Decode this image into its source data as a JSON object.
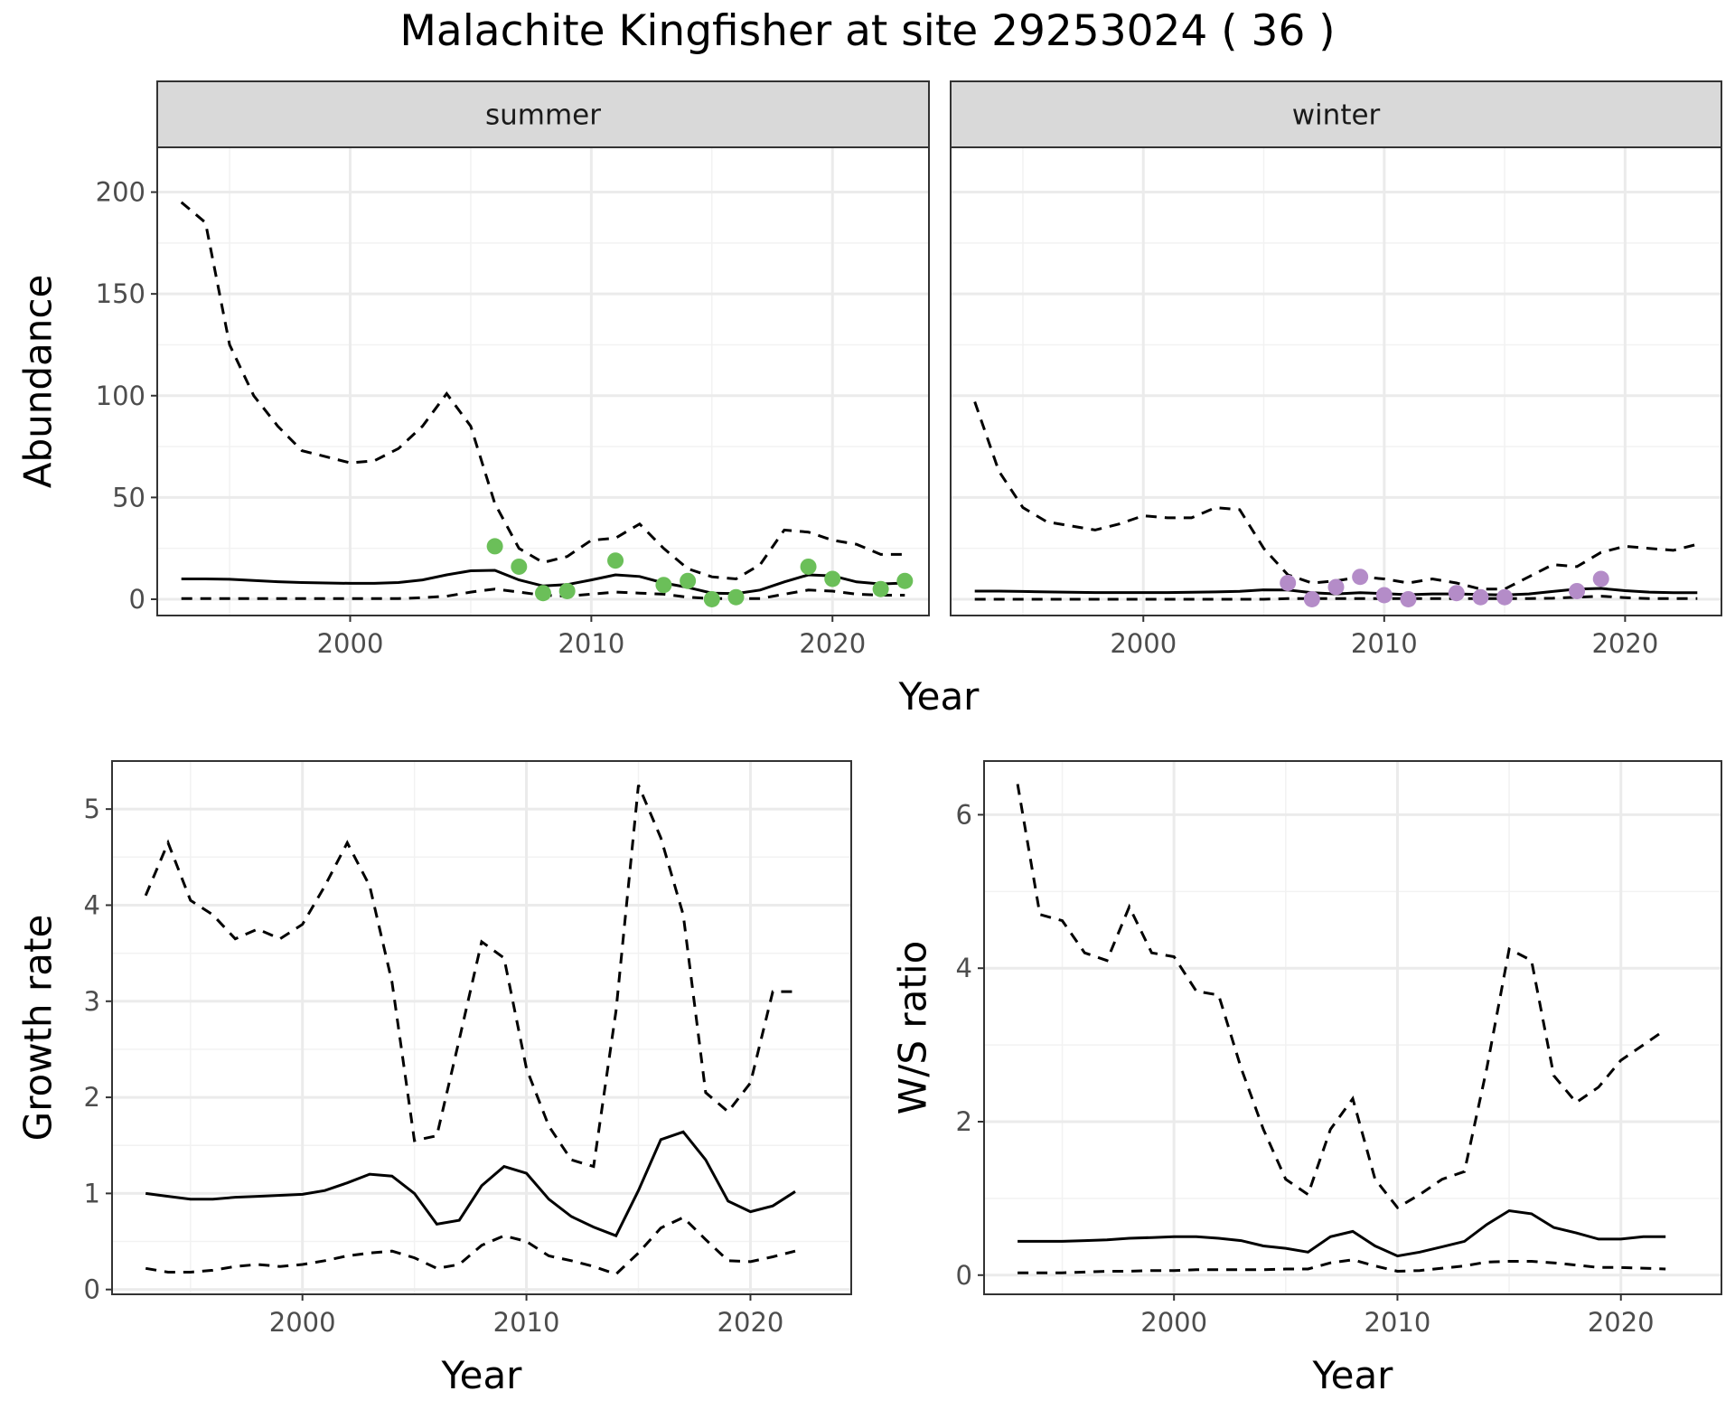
{
  "title": "Malachite Kingfisher at site 29253024 ( 36 )",
  "colors": {
    "summer_points": "#6bbf59",
    "winter_points": "#b48cc8",
    "strip_fill": "#d9d9d9",
    "lines": "#000000"
  },
  "chart_data": [
    {
      "type": "line",
      "facet": "summer",
      "xlabel": "Year",
      "ylabel": "Abundance",
      "xlim": [
        1992,
        2024
      ],
      "ylim": [
        -8,
        222
      ],
      "xticks": [
        2000,
        2010,
        2020
      ],
      "yticks": [
        0,
        50,
        100,
        150,
        200
      ],
      "grid": true,
      "series": [
        {
          "x": [
            1993,
            1994,
            1995,
            1996,
            1997,
            1998,
            1999,
            2000,
            2001,
            2002,
            2003,
            2004,
            2005,
            2006,
            2007,
            2008,
            2009,
            2010,
            2011,
            2012,
            2013,
            2014,
            2015,
            2016,
            2017,
            2018,
            2019,
            2020,
            2021,
            2022,
            2023
          ],
          "style": "solid",
          "values": [
            10,
            10,
            9.8,
            9.2,
            8.6,
            8.2,
            8,
            7.8,
            7.8,
            8.2,
            9.5,
            12,
            14,
            14.2,
            9.5,
            6.5,
            7.2,
            9.5,
            12,
            11.2,
            8,
            5.8,
            3,
            2.8,
            4.5,
            8.5,
            12,
            11.5,
            8.5,
            7.5,
            8
          ]
        },
        {
          "x": [
            1993,
            1994,
            1995,
            1996,
            1997,
            1998,
            1999,
            2000,
            2001,
            2002,
            2003,
            2004,
            2005,
            2006,
            2007,
            2008,
            2009,
            2010,
            2011,
            2012,
            2013,
            2014,
            2015,
            2016,
            2017,
            2018,
            2019,
            2020,
            2021,
            2022,
            2023
          ],
          "style": "dashed",
          "values": [
            195,
            185,
            125,
            100,
            85,
            73,
            70,
            67,
            68,
            74,
            85,
            101,
            85,
            47,
            25,
            18,
            21,
            29,
            30,
            37,
            25,
            15,
            11,
            10,
            17,
            34,
            33,
            29,
            27,
            22,
            22
          ]
        },
        {
          "x": [
            1993,
            1994,
            1995,
            1996,
            1997,
            1998,
            1999,
            2000,
            2001,
            2002,
            2003,
            2004,
            2005,
            2006,
            2007,
            2008,
            2009,
            2010,
            2011,
            2012,
            2013,
            2014,
            2015,
            2016,
            2017,
            2018,
            2019,
            2020,
            2021,
            2022,
            2023
          ],
          "style": "dashed",
          "values": [
            0.3,
            0.3,
            0.3,
            0.3,
            0.3,
            0.3,
            0.3,
            0.3,
            0.3,
            0.3,
            0.8,
            1.5,
            3.5,
            5,
            3.5,
            2,
            1.5,
            2.5,
            3.5,
            3,
            2.5,
            1,
            0.3,
            0.3,
            0.3,
            2.5,
            4.5,
            4,
            2.5,
            2,
            2
          ]
        }
      ],
      "points": {
        "x": [
          2006,
          2007,
          2008,
          2009,
          2011,
          2013,
          2014,
          2015,
          2016,
          2019,
          2020,
          2022,
          2023
        ],
        "y": [
          26,
          16,
          3,
          4,
          19,
          7,
          9,
          0,
          1,
          16,
          10,
          5,
          9
        ]
      }
    },
    {
      "type": "line",
      "facet": "winter",
      "xlabel": "Year",
      "ylabel": "Abundance",
      "xlim": [
        1992,
        2024
      ],
      "ylim": [
        -8,
        222
      ],
      "xticks": [
        2000,
        2010,
        2020
      ],
      "yticks": [
        0,
        50,
        100,
        150,
        200
      ],
      "grid": true,
      "series": [
        {
          "x": [
            1993,
            1994,
            1995,
            1996,
            1997,
            1998,
            1999,
            2000,
            2001,
            2002,
            2003,
            2004,
            2005,
            2006,
            2007,
            2008,
            2009,
            2010,
            2011,
            2012,
            2013,
            2014,
            2015,
            2016,
            2017,
            2018,
            2019,
            2020,
            2021,
            2022,
            2023
          ],
          "style": "solid",
          "values": [
            4,
            4,
            3.8,
            3.6,
            3.4,
            3.3,
            3.3,
            3.3,
            3.3,
            3.4,
            3.6,
            3.9,
            4.6,
            4.5,
            3.2,
            2.6,
            3.2,
            2.8,
            2.2,
            2.6,
            2.6,
            2.3,
            2.1,
            2.6,
            3.8,
            5,
            5.3,
            4.2,
            3.5,
            3.2,
            3.2
          ]
        },
        {
          "x": [
            1993,
            1994,
            1995,
            1996,
            1997,
            1998,
            1999,
            2000,
            2001,
            2002,
            2003,
            2004,
            2005,
            2006,
            2007,
            2008,
            2009,
            2010,
            2011,
            2012,
            2013,
            2014,
            2015,
            2016,
            2017,
            2018,
            2019,
            2020,
            2021,
            2022,
            2023
          ],
          "style": "dashed",
          "values": [
            97,
            63,
            45,
            38,
            36,
            34,
            37,
            41,
            40,
            40,
            45,
            44,
            25,
            12,
            8,
            9,
            11,
            10,
            8,
            10,
            8,
            5,
            5,
            11,
            17,
            16,
            23,
            26,
            25,
            24,
            27
          ]
        },
        {
          "x": [
            1993,
            1994,
            1995,
            1996,
            1997,
            1998,
            1999,
            2000,
            2001,
            2002,
            2003,
            2004,
            2005,
            2006,
            2007,
            2008,
            2009,
            2010,
            2011,
            2012,
            2013,
            2014,
            2015,
            2016,
            2017,
            2018,
            2019,
            2020,
            2021,
            2022,
            2023
          ],
          "style": "dashed",
          "values": [
            0,
            0,
            0,
            0,
            0,
            0,
            0,
            0,
            0,
            0,
            0,
            0,
            0,
            0.3,
            0.3,
            0.3,
            0.3,
            0.3,
            0.3,
            0.3,
            0.3,
            0.3,
            0.3,
            0.3,
            0.5,
            1,
            1.5,
            0.8,
            0.3,
            0.3,
            0.3
          ]
        }
      ],
      "points": {
        "x": [
          2006,
          2007,
          2008,
          2009,
          2010,
          2011,
          2013,
          2014,
          2015,
          2018,
          2019
        ],
        "y": [
          8,
          0,
          6,
          11,
          2,
          0,
          3,
          1,
          1,
          4,
          10
        ]
      }
    },
    {
      "type": "line",
      "xlabel": "Year",
      "ylabel": "Growth rate",
      "xlim": [
        1991.5,
        2024.5
      ],
      "ylim": [
        -0.05,
        5.5
      ],
      "xticks": [
        2000,
        2010,
        2020
      ],
      "yticks": [
        0,
        1,
        2,
        3,
        4,
        5
      ],
      "grid": true,
      "series": [
        {
          "x": [
            1993,
            1994,
            1995,
            1996,
            1997,
            1998,
            1999,
            2000,
            2001,
            2002,
            2003,
            2004,
            2005,
            2006,
            2007,
            2008,
            2009,
            2010,
            2011,
            2012,
            2013,
            2014,
            2015,
            2016,
            2017,
            2018,
            2019,
            2020,
            2021,
            2022
          ],
          "style": "solid",
          "values": [
            1,
            0.97,
            0.94,
            0.94,
            0.96,
            0.97,
            0.98,
            0.99,
            1.03,
            1.11,
            1.2,
            1.18,
            1,
            0.68,
            0.72,
            1.08,
            1.28,
            1.21,
            0.94,
            0.76,
            0.65,
            0.56,
            1.03,
            1.56,
            1.64,
            1.35,
            0.92,
            0.81,
            0.87,
            1.02
          ]
        },
        {
          "x": [
            1993,
            1994,
            1995,
            1996,
            1997,
            1998,
            1999,
            2000,
            2001,
            2002,
            2003,
            2004,
            2005,
            2006,
            2007,
            2008,
            2009,
            2010,
            2011,
            2012,
            2013,
            2014,
            2015,
            2016,
            2017,
            2018,
            2019,
            2020,
            2021,
            2022
          ],
          "style": "dashed",
          "values": [
            4.1,
            4.65,
            4.05,
            3.9,
            3.65,
            3.75,
            3.65,
            3.8,
            4.2,
            4.65,
            4.2,
            3.2,
            1.55,
            1.6,
            2.6,
            3.62,
            3.45,
            2.3,
            1.7,
            1.35,
            1.28,
            2.9,
            5.25,
            4.7,
            3.9,
            2.05,
            1.85,
            2.15,
            3.1,
            3.1
          ]
        },
        {
          "x": [
            1993,
            1994,
            1995,
            1996,
            1997,
            1998,
            1999,
            2000,
            2001,
            2002,
            2003,
            2004,
            2005,
            2006,
            2007,
            2008,
            2009,
            2010,
            2011,
            2012,
            2013,
            2014,
            2015,
            2016,
            2017,
            2018,
            2019,
            2020,
            2021,
            2022
          ],
          "style": "dashed",
          "values": [
            0.22,
            0.18,
            0.18,
            0.2,
            0.24,
            0.26,
            0.24,
            0.26,
            0.3,
            0.35,
            0.38,
            0.4,
            0.33,
            0.22,
            0.26,
            0.46,
            0.56,
            0.5,
            0.35,
            0.3,
            0.24,
            0.16,
            0.38,
            0.64,
            0.75,
            0.52,
            0.3,
            0.29,
            0.34,
            0.4
          ]
        }
      ]
    },
    {
      "type": "line",
      "xlabel": "Year",
      "ylabel": "W/S ratio",
      "xlim": [
        1991.5,
        2024.5
      ],
      "ylim": [
        -0.25,
        6.7
      ],
      "xticks": [
        2000,
        2010,
        2020
      ],
      "yticks": [
        0,
        2,
        4,
        6
      ],
      "grid": true,
      "series": [
        {
          "x": [
            1993,
            1994,
            1995,
            1996,
            1997,
            1998,
            1999,
            2000,
            2001,
            2002,
            2003,
            2004,
            2005,
            2006,
            2007,
            2008,
            2009,
            2010,
            2011,
            2012,
            2013,
            2014,
            2015,
            2016,
            2017,
            2018,
            2019,
            2020,
            2021,
            2022
          ],
          "style": "solid",
          "values": [
            0.44,
            0.44,
            0.44,
            0.45,
            0.46,
            0.48,
            0.49,
            0.5,
            0.5,
            0.48,
            0.45,
            0.38,
            0.35,
            0.3,
            0.5,
            0.57,
            0.38,
            0.25,
            0.3,
            0.37,
            0.44,
            0.66,
            0.84,
            0.8,
            0.62,
            0.55,
            0.47,
            0.47,
            0.5,
            0.5
          ]
        },
        {
          "x": [
            1993,
            1994,
            1995,
            1996,
            1997,
            1998,
            1999,
            2000,
            2001,
            2002,
            2003,
            2004,
            2005,
            2006,
            2007,
            2008,
            2009,
            2010,
            2011,
            2012,
            2013,
            2014,
            2015,
            2016,
            2017,
            2018,
            2019,
            2020,
            2021,
            2022
          ],
          "style": "dashed",
          "values": [
            6.4,
            4.7,
            4.62,
            4.2,
            4.1,
            4.8,
            4.2,
            4.15,
            3.7,
            3.65,
            2.7,
            1.9,
            1.25,
            1.05,
            1.9,
            2.3,
            1.25,
            0.88,
            1.05,
            1.25,
            1.35,
            2.7,
            4.25,
            4.1,
            2.6,
            2.25,
            2.45,
            2.8,
            3.0,
            3.2
          ]
        },
        {
          "x": [
            1993,
            1994,
            1995,
            1996,
            1997,
            1998,
            1999,
            2000,
            2001,
            2002,
            2003,
            2004,
            2005,
            2006,
            2007,
            2008,
            2009,
            2010,
            2011,
            2012,
            2013,
            2014,
            2015,
            2016,
            2017,
            2018,
            2019,
            2020,
            2021,
            2022
          ],
          "style": "dashed",
          "values": [
            0.03,
            0.03,
            0.03,
            0.04,
            0.05,
            0.05,
            0.06,
            0.06,
            0.07,
            0.07,
            0.07,
            0.07,
            0.08,
            0.08,
            0.16,
            0.2,
            0.12,
            0.05,
            0.06,
            0.09,
            0.12,
            0.17,
            0.18,
            0.18,
            0.16,
            0.13,
            0.1,
            0.1,
            0.09,
            0.08
          ]
        }
      ]
    }
  ]
}
